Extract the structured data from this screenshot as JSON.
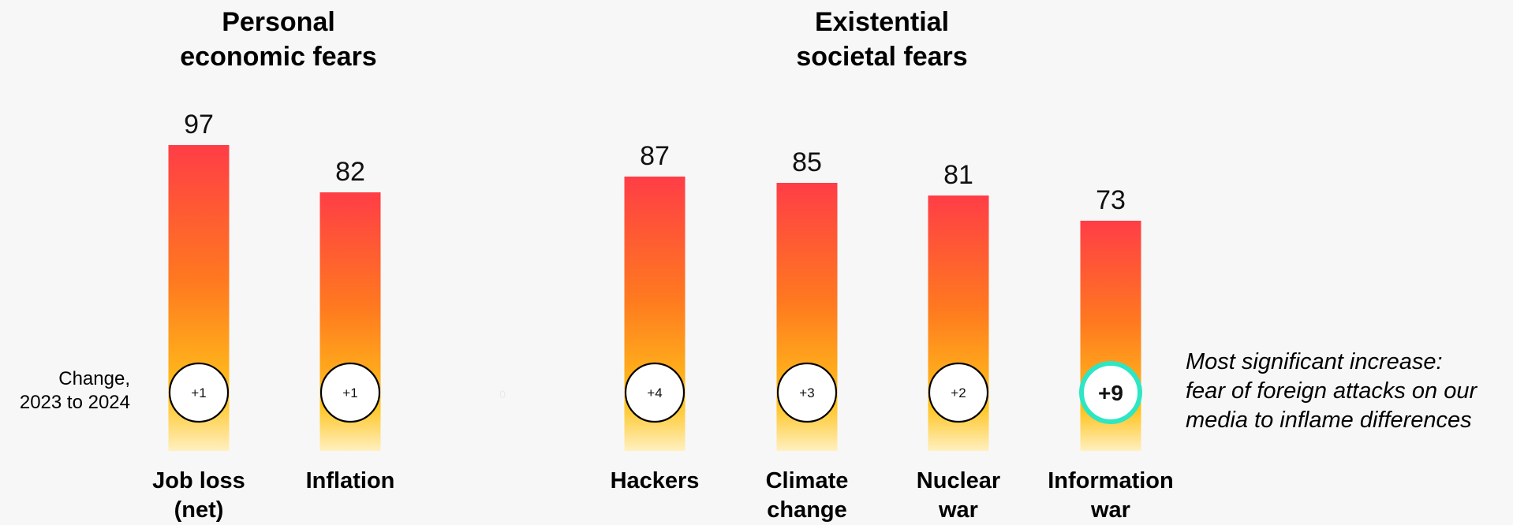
{
  "chart_data": {
    "type": "bar",
    "groups": [
      {
        "title": "Personal\neconomic fears",
        "categories": [
          "Job loss\n(net)",
          "Inflation"
        ]
      },
      {
        "title": "Existential\nsocietal fears",
        "categories": [
          "Hackers",
          "Climate\nchange",
          "Nuclear\nwar",
          "Information\nwar"
        ]
      }
    ],
    "categories": [
      "Job loss\n(net)",
      "Inflation",
      "Hackers",
      "Climate\nchange",
      "Nuclear\nwar",
      "Information\nwar"
    ],
    "values": [
      97,
      82,
      87,
      85,
      81,
      73
    ],
    "changes": [
      "+1",
      "+1",
      "+4",
      "+3",
      "+2",
      "+9"
    ],
    "highlight_index": 5,
    "change_label": "Change,\n2023 to 2024",
    "separator_value": "0",
    "annotation": "Most significant increase:\nfear of foreign attacks on our\nmedia to inflame differences",
    "ylim": [
      0,
      100
    ],
    "colors": {
      "bar_top": "#ff3d46",
      "bar_mid": "#ff7a1f",
      "bar_bottom": "#ffc21a",
      "bar_fade": "#fff0c0",
      "highlight_ring": "#2de6c4",
      "circle_ring": "#000000"
    }
  }
}
